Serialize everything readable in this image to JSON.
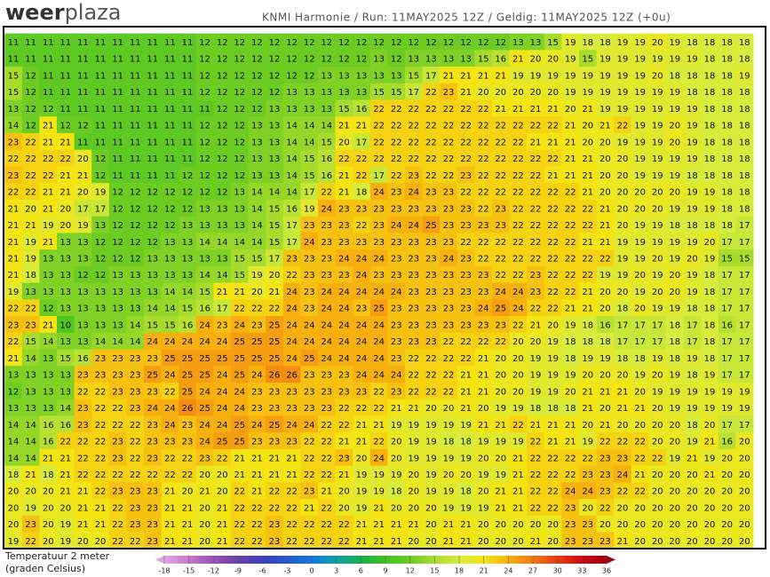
{
  "header": {
    "logo_a": "weer",
    "logo_b": "plaza",
    "info": "KNMI Harmonie / Run: 11MAY2025 12Z / Geldig: 11MAY2025 12Z (+0u)"
  },
  "legend": {
    "label_1": "Temperatuur 2 meter",
    "label_2": "(graden Celsius)",
    "ticks": [
      -18,
      -15,
      -12,
      -9,
      -6,
      -3,
      0,
      3,
      6,
      9,
      12,
      15,
      18,
      21,
      24,
      27,
      30,
      33,
      36
    ],
    "colors": [
      "#e0a8e0",
      "#c878c8",
      "#9a50b8",
      "#6a40a8",
      "#3c40b8",
      "#2458d0",
      "#1478e0",
      "#10a0a8",
      "#18b048",
      "#44c224",
      "#6ccc22",
      "#a8dc2c",
      "#d8ec3c",
      "#f4e414",
      "#f8b010",
      "#f27a12",
      "#e83c10",
      "#cc0a10",
      "#a00010"
    ]
  },
  "grid": [
    [
      11,
      11,
      11,
      11,
      11,
      11,
      11,
      11,
      11,
      11,
      11,
      12,
      12,
      12,
      12,
      12,
      12,
      12,
      12,
      12,
      12,
      12,
      12,
      12,
      12,
      12,
      12,
      12,
      12,
      13,
      13,
      15,
      19,
      18,
      18,
      19,
      19,
      20,
      19,
      18,
      18,
      18,
      18
    ],
    [
      11,
      11,
      11,
      11,
      11,
      11,
      11,
      11,
      11,
      11,
      11,
      12,
      12,
      12,
      12,
      12,
      12,
      12,
      12,
      12,
      12,
      13,
      12,
      13,
      13,
      13,
      13,
      15,
      16,
      21,
      20,
      20,
      19,
      15,
      19,
      19,
      19,
      19,
      19,
      19,
      18,
      18,
      18
    ],
    [
      15,
      12,
      11,
      11,
      11,
      11,
      11,
      11,
      11,
      11,
      11,
      12,
      12,
      12,
      12,
      12,
      12,
      12,
      13,
      13,
      13,
      13,
      13,
      15,
      17,
      21,
      21,
      21,
      21,
      19,
      19,
      19,
      19,
      19,
      19,
      19,
      19,
      20,
      18,
      18,
      18,
      18,
      19
    ],
    [
      15,
      12,
      11,
      11,
      11,
      11,
      11,
      11,
      11,
      11,
      11,
      12,
      12,
      12,
      12,
      12,
      13,
      13,
      13,
      13,
      13,
      15,
      15,
      17,
      22,
      23,
      21,
      20,
      20,
      20,
      20,
      20,
      19,
      19,
      19,
      19,
      19,
      19,
      19,
      18,
      18,
      18,
      18
    ],
    [
      13,
      12,
      12,
      11,
      11,
      11,
      11,
      11,
      11,
      11,
      11,
      11,
      12,
      12,
      12,
      13,
      13,
      13,
      13,
      15,
      16,
      22,
      22,
      22,
      22,
      22,
      22,
      22,
      21,
      21,
      21,
      21,
      20,
      21,
      19,
      19,
      19,
      19,
      19,
      19,
      18,
      18,
      18
    ],
    [
      14,
      12,
      21,
      12,
      12,
      11,
      11,
      11,
      11,
      11,
      11,
      12,
      12,
      12,
      13,
      13,
      14,
      14,
      14,
      21,
      21,
      22,
      22,
      22,
      22,
      22,
      22,
      22,
      22,
      22,
      22,
      22,
      21,
      20,
      21,
      22,
      19,
      19,
      20,
      19,
      18,
      18,
      18
    ],
    [
      23,
      22,
      21,
      21,
      11,
      11,
      11,
      11,
      11,
      11,
      11,
      12,
      12,
      12,
      13,
      13,
      14,
      14,
      15,
      20,
      17,
      22,
      22,
      22,
      22,
      22,
      22,
      22,
      22,
      22,
      21,
      21,
      21,
      20,
      20,
      19,
      19,
      19,
      20,
      19,
      18,
      18,
      18
    ],
    [
      22,
      22,
      22,
      22,
      20,
      12,
      11,
      11,
      11,
      11,
      11,
      12,
      12,
      12,
      13,
      13,
      14,
      15,
      16,
      22,
      22,
      22,
      22,
      22,
      22,
      22,
      22,
      22,
      22,
      22,
      22,
      22,
      21,
      21,
      20,
      20,
      19,
      19,
      19,
      19,
      18,
      18,
      18
    ],
    [
      23,
      22,
      22,
      21,
      21,
      12,
      11,
      11,
      11,
      11,
      12,
      12,
      12,
      12,
      13,
      13,
      14,
      15,
      16,
      21,
      22,
      17,
      22,
      23,
      22,
      22,
      23,
      22,
      22,
      22,
      22,
      21,
      21,
      21,
      20,
      20,
      19,
      19,
      19,
      18,
      18,
      18,
      18
    ],
    [
      22,
      22,
      21,
      21,
      20,
      19,
      12,
      12,
      12,
      12,
      12,
      12,
      12,
      13,
      14,
      14,
      14,
      17,
      22,
      21,
      18,
      24,
      23,
      24,
      23,
      23,
      22,
      22,
      22,
      22,
      22,
      22,
      22,
      21,
      20,
      20,
      20,
      20,
      20,
      19,
      19,
      18,
      18
    ],
    [
      21,
      20,
      21,
      20,
      17,
      17,
      12,
      12,
      12,
      12,
      12,
      13,
      13,
      13,
      14,
      15,
      16,
      19,
      24,
      23,
      23,
      23,
      23,
      23,
      23,
      23,
      23,
      22,
      23,
      22,
      22,
      22,
      22,
      22,
      21,
      20,
      20,
      20,
      19,
      19,
      19,
      18,
      18
    ],
    [
      21,
      21,
      19,
      20,
      19,
      13,
      12,
      12,
      12,
      12,
      13,
      13,
      13,
      13,
      14,
      15,
      17,
      23,
      23,
      23,
      22,
      23,
      24,
      24,
      25,
      23,
      23,
      23,
      23,
      22,
      22,
      22,
      22,
      22,
      21,
      20,
      19,
      19,
      18,
      18,
      18,
      18,
      17
    ],
    [
      21,
      19,
      21,
      13,
      13,
      12,
      12,
      12,
      12,
      13,
      13,
      14,
      14,
      14,
      14,
      15,
      17,
      24,
      23,
      23,
      23,
      23,
      23,
      23,
      23,
      23,
      22,
      22,
      22,
      22,
      22,
      22,
      22,
      21,
      21,
      19,
      19,
      19,
      19,
      19,
      20,
      17,
      17
    ],
    [
      21,
      19,
      13,
      13,
      13,
      12,
      12,
      12,
      13,
      13,
      13,
      13,
      13,
      15,
      15,
      17,
      23,
      23,
      23,
      24,
      24,
      24,
      23,
      23,
      23,
      24,
      23,
      22,
      22,
      22,
      22,
      22,
      22,
      22,
      22,
      19,
      19,
      20,
      19,
      20,
      19,
      15,
      15
    ],
    [
      21,
      18,
      13,
      13,
      12,
      12,
      13,
      13,
      13,
      13,
      13,
      14,
      14,
      15,
      19,
      20,
      22,
      23,
      23,
      23,
      24,
      23,
      23,
      23,
      23,
      23,
      23,
      23,
      22,
      22,
      23,
      22,
      22,
      22,
      19,
      19,
      20,
      19,
      20,
      19,
      18,
      17,
      17
    ],
    [
      19,
      13,
      13,
      13,
      13,
      13,
      13,
      13,
      13,
      14,
      14,
      15,
      21,
      21,
      20,
      21,
      24,
      23,
      24,
      24,
      24,
      24,
      24,
      23,
      23,
      23,
      23,
      23,
      24,
      24,
      23,
      22,
      22,
      21,
      20,
      20,
      19,
      20,
      20,
      19,
      18,
      17,
      17
    ],
    [
      22,
      22,
      12,
      13,
      13,
      13,
      13,
      13,
      14,
      14,
      15,
      16,
      17,
      22,
      22,
      22,
      24,
      23,
      24,
      24,
      23,
      25,
      23,
      23,
      23,
      23,
      23,
      24,
      25,
      24,
      22,
      22,
      21,
      21,
      20,
      18,
      20,
      19,
      19,
      18,
      18,
      17,
      17
    ],
    [
      23,
      23,
      21,
      10,
      13,
      13,
      13,
      14,
      15,
      15,
      16,
      24,
      23,
      24,
      23,
      25,
      24,
      24,
      24,
      24,
      24,
      24,
      23,
      23,
      23,
      23,
      23,
      23,
      23,
      22,
      21,
      20,
      19,
      18,
      16,
      17,
      17,
      17,
      18,
      17,
      18,
      16,
      17
    ],
    [
      22,
      15,
      14,
      13,
      13,
      14,
      14,
      14,
      24,
      24,
      24,
      24,
      24,
      25,
      25,
      25,
      24,
      24,
      24,
      24,
      24,
      24,
      23,
      23,
      23,
      22,
      22,
      22,
      22,
      20,
      20,
      19,
      18,
      18,
      18,
      17,
      17,
      17,
      18,
      17,
      18,
      17,
      17
    ],
    [
      21,
      14,
      13,
      15,
      16,
      23,
      23,
      23,
      23,
      25,
      25,
      25,
      25,
      25,
      25,
      25,
      24,
      25,
      24,
      24,
      24,
      24,
      23,
      22,
      22,
      22,
      22,
      21,
      20,
      20,
      19,
      19,
      18,
      19,
      19,
      18,
      18,
      19,
      18,
      19,
      18,
      17,
      17
    ],
    [
      13,
      13,
      13,
      13,
      23,
      23,
      23,
      23,
      25,
      24,
      25,
      25,
      24,
      25,
      24,
      26,
      26,
      23,
      23,
      23,
      24,
      24,
      24,
      22,
      22,
      22,
      21,
      21,
      20,
      20,
      19,
      19,
      19,
      20,
      20,
      20,
      19,
      20,
      19,
      18,
      19,
      17,
      17
    ],
    [
      12,
      13,
      13,
      13,
      22,
      22,
      23,
      23,
      23,
      22,
      25,
      24,
      24,
      24,
      23,
      23,
      23,
      23,
      23,
      23,
      23,
      22,
      23,
      22,
      22,
      22,
      21,
      21,
      20,
      20,
      19,
      19,
      20,
      21,
      21,
      21,
      20,
      19,
      19,
      19,
      19,
      19,
      19
    ],
    [
      13,
      13,
      13,
      14,
      23,
      22,
      22,
      23,
      24,
      24,
      26,
      25,
      24,
      24,
      23,
      23,
      23,
      23,
      23,
      22,
      22,
      22,
      21,
      21,
      20,
      20,
      21,
      20,
      19,
      19,
      18,
      18,
      18,
      21,
      20,
      21,
      21,
      20,
      19,
      19,
      19,
      19,
      19
    ],
    [
      14,
      14,
      16,
      16,
      23,
      22,
      22,
      22,
      23,
      24,
      23,
      24,
      24,
      25,
      24,
      25,
      24,
      24,
      22,
      22,
      21,
      21,
      19,
      19,
      19,
      19,
      19,
      21,
      21,
      22,
      21,
      21,
      21,
      20,
      21,
      20,
      20,
      20,
      20,
      18,
      20,
      17,
      17
    ],
    [
      14,
      14,
      16,
      22,
      22,
      22,
      23,
      22,
      23,
      23,
      23,
      24,
      25,
      25,
      23,
      23,
      23,
      22,
      22,
      21,
      21,
      22,
      20,
      19,
      19,
      18,
      18,
      19,
      19,
      19,
      22,
      21,
      21,
      19,
      22,
      22,
      22,
      20,
      20,
      19,
      21,
      16,
      20
    ],
    [
      14,
      14,
      21,
      21,
      22,
      22,
      23,
      22,
      23,
      22,
      22,
      23,
      22,
      21,
      21,
      21,
      21,
      22,
      22,
      23,
      20,
      24,
      20,
      19,
      19,
      19,
      19,
      20,
      20,
      21,
      22,
      22,
      22,
      22,
      23,
      23,
      22,
      22,
      19,
      21,
      19,
      20,
      20
    ],
    [
      18,
      21,
      18,
      21,
      22,
      22,
      22,
      22,
      22,
      22,
      22,
      20,
      20,
      21,
      21,
      21,
      21,
      22,
      22,
      21,
      19,
      19,
      19,
      20,
      19,
      20,
      20,
      19,
      19,
      21,
      22,
      22,
      22,
      23,
      23,
      24,
      21,
      20,
      20,
      20,
      21,
      20,
      20
    ],
    [
      20,
      20,
      20,
      21,
      21,
      22,
      23,
      23,
      23,
      21,
      20,
      21,
      20,
      22,
      21,
      22,
      22,
      23,
      21,
      20,
      19,
      19,
      18,
      20,
      19,
      19,
      18,
      20,
      21,
      21,
      22,
      22,
      24,
      24,
      23,
      22,
      22,
      20,
      20,
      20,
      20,
      20,
      20
    ],
    [
      20,
      19,
      20,
      20,
      21,
      21,
      22,
      23,
      23,
      21,
      21,
      20,
      21,
      22,
      22,
      22,
      22,
      21,
      22,
      20,
      19,
      21,
      20,
      20,
      20,
      19,
      19,
      19,
      21,
      21,
      22,
      22,
      23,
      20,
      22,
      20,
      20,
      20,
      20,
      20,
      20,
      20,
      20
    ],
    [
      20,
      23,
      20,
      19,
      21,
      21,
      22,
      23,
      23,
      21,
      21,
      20,
      21,
      22,
      22,
      23,
      22,
      22,
      22,
      22,
      21,
      21,
      21,
      21,
      20,
      21,
      21,
      20,
      20,
      20,
      20,
      20,
      23,
      23,
      20,
      20,
      20,
      20,
      20,
      20,
      20,
      20,
      20
    ],
    [
      19,
      22,
      20,
      19,
      20,
      20,
      22,
      22,
      23,
      21,
      21,
      20,
      21,
      22,
      22,
      23,
      22,
      22,
      22,
      22,
      21,
      21,
      21,
      20,
      20,
      21,
      21,
      20,
      20,
      20,
      21,
      20,
      23,
      23,
      23,
      21,
      20,
      20,
      20,
      20,
      20,
      20,
      20
    ]
  ]
}
